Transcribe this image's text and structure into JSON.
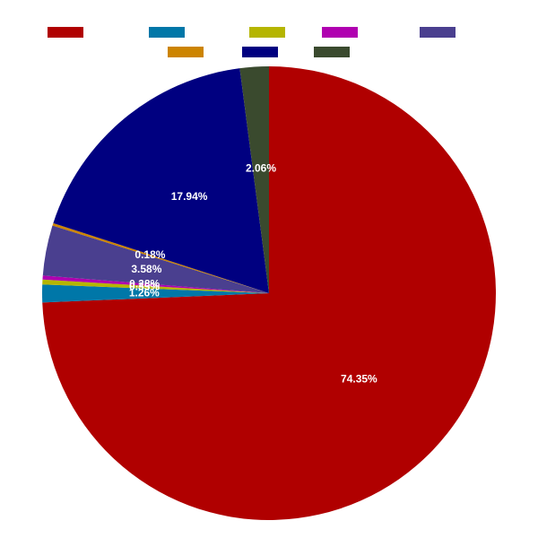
{
  "chart_data": {
    "type": "pie",
    "title": "",
    "legend": {
      "position": "top",
      "show_text": false
    },
    "start_angle_deg": 0,
    "direction": "clockwise",
    "slices": [
      {
        "value": 74.35,
        "label": "74.35%",
        "color": "#b00000"
      },
      {
        "value": 1.26,
        "label": "1.26%",
        "color": "#0077a8"
      },
      {
        "value": 0.35,
        "label": "0.35%",
        "color": "#b5b500"
      },
      {
        "value": 0.28,
        "label": "0.28%",
        "color": "#b000b0"
      },
      {
        "value": 3.58,
        "label": "3.58%",
        "color": "#4a3f8f"
      },
      {
        "value": 0.18,
        "label": "0.18%",
        "color": "#cc8400"
      },
      {
        "value": 17.94,
        "label": "17.94%",
        "color": "#000080"
      },
      {
        "value": 2.06,
        "label": "2.06%",
        "color": "#3a4a2e"
      }
    ]
  }
}
